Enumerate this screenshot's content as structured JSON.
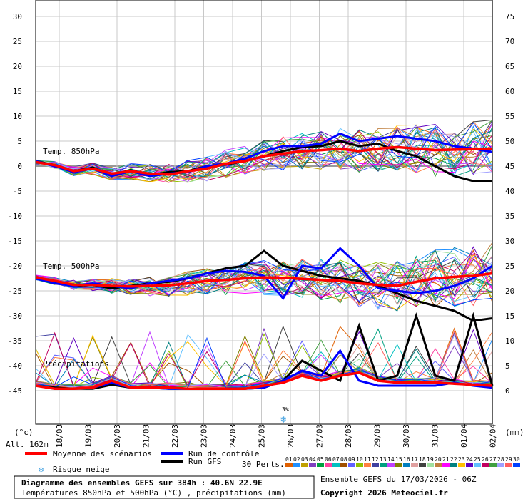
{
  "chart_data": {
    "type": "line",
    "left_axis": {
      "unit": "(°c)",
      "ticks": [
        30,
        25,
        20,
        15,
        10,
        5,
        0,
        -5,
        -10,
        -15,
        -20,
        -25,
        -30,
        -35,
        -40,
        -45
      ],
      "range": [
        -45,
        30
      ]
    },
    "right_axis": {
      "unit": "(mm)",
      "ticks": [
        75,
        70,
        65,
        60,
        55,
        50,
        45,
        40,
        35,
        30,
        25,
        20,
        15,
        10,
        5,
        0
      ],
      "range": [
        0,
        75
      ]
    },
    "x_labels": [
      "18/03",
      "19/03",
      "20/03",
      "21/03",
      "22/03",
      "23/03",
      "24/03",
      "25/03",
      "26/03",
      "27/03",
      "28/03",
      "29/03",
      "30/03",
      "31/03",
      "01/04",
      "02/04"
    ],
    "panels": [
      "Temp. 850hPa",
      "Temp. 500hPa",
      "Précipitations"
    ],
    "altitude": "Alt. 162m",
    "series": [
      {
        "name": "Moyenne des scénarios",
        "color": "#ff0000",
        "t850": [
          0.8,
          0.2,
          -1,
          -0.5,
          -1.5,
          -1,
          -1.5,
          -1.7,
          -1,
          -0.5,
          0.5,
          1,
          2,
          2.5,
          3,
          3.2,
          3.5,
          3,
          3.5,
          3.8,
          3.5,
          3.2,
          3.3,
          3.4,
          3.5
        ],
        "t500": [
          -22.3,
          -23,
          -23.8,
          -23.8,
          -24,
          -24.1,
          -24,
          -23.9,
          -23.5,
          -23,
          -22.8,
          -22.5,
          -22.3,
          -22.4,
          -22.6,
          -22.8,
          -23,
          -23.5,
          -23.8,
          -24,
          -23.2,
          -22.5,
          -22.2,
          -22,
          -21.5
        ],
        "precip": [
          0.5,
          0.2,
          0.2,
          0.3,
          1,
          0.3,
          0.3,
          0.3,
          0.2,
          0.2,
          0.2,
          0.2,
          0.5,
          0.8,
          1.5,
          1,
          1.5,
          1.8,
          1,
          0.8,
          0.8,
          0.8,
          0.7,
          0.6,
          0.5
        ]
      },
      {
        "name": "Run de contrôle",
        "color": "#0000ff",
        "t850": [
          1,
          0,
          -1.2,
          -0.5,
          -2,
          -1,
          -2,
          -1.5,
          -1.2,
          0,
          0.5,
          1.5,
          3,
          4,
          4,
          4.5,
          6.5,
          5,
          5.5,
          6,
          5.5,
          5,
          4,
          3.5,
          2.8
        ],
        "t500": [
          -22.5,
          -23.5,
          -24,
          -23.5,
          -24,
          -24.5,
          -23.5,
          -23,
          -22.5,
          -21.5,
          -21,
          -21.2,
          -22,
          -26.5,
          -20,
          -20.5,
          -16.5,
          -20,
          -24.5,
          -25,
          -25.5,
          -25,
          -24,
          -22.5,
          -20
        ],
        "precip": [
          0.5,
          0.2,
          0.2,
          0.3,
          0.8,
          0.3,
          0.3,
          0.2,
          0.2,
          0.2,
          0.2,
          0.2,
          0.3,
          1,
          2,
          1.5,
          4,
          1,
          0.5,
          0.5,
          0.5,
          0.5,
          0.8,
          0.5,
          0.3
        ]
      },
      {
        "name": "Run GFS",
        "color": "#000000",
        "t850": [
          1,
          0.2,
          -1,
          -0.3,
          -1.8,
          -0.8,
          -1.8,
          -1.2,
          -1,
          0,
          0.3,
          1,
          2,
          3,
          3.8,
          4,
          5,
          4,
          4.5,
          3,
          2,
          0,
          -2,
          -3,
          -3
        ],
        "t500": [
          -22.5,
          -23.2,
          -24,
          -23.8,
          -24.5,
          -24,
          -23.5,
          -23.2,
          -22.5,
          -21.5,
          -20.5,
          -20,
          -17,
          -20,
          -21,
          -22,
          -22.5,
          -23,
          -24,
          -25.5,
          -27,
          -28,
          -29,
          -31,
          -30.5
        ],
        "precip": [
          0.5,
          0.3,
          0.2,
          0.2,
          0.6,
          0.3,
          0.3,
          0.2,
          0.2,
          0.2,
          0.2,
          0.2,
          0.3,
          1,
          3,
          2,
          1,
          6.5,
          1,
          1.5,
          7.5,
          1.5,
          1,
          7.5,
          0.5
        ]
      }
    ],
    "legend": {
      "items": [
        "Moyenne des scénarios",
        "Run de contrôle",
        "Run GFS",
        "Risque neige"
      ],
      "perts_label": "30 Perts.",
      "perts": [
        "01",
        "02",
        "03",
        "04",
        "05",
        "06",
        "07",
        "08",
        "09",
        "10",
        "11",
        "12",
        "13",
        "14",
        "15",
        "16",
        "17",
        "18",
        "19",
        "20",
        "21",
        "22",
        "23",
        "24",
        "25",
        "26",
        "27",
        "28",
        "29",
        "30"
      ]
    },
    "title": "Diagramme des ensembles GEFS sur 384h : 40.6N 22.9E",
    "subtitle": "Températures 850hPa et 500hPa (°C) , précipitations (mm)",
    "run_info": "Ensemble GEFS du 17/03/2026 - 06Z",
    "copyright": "Copyright 2026 Meteociel.fr",
    "snow_marker": "3%"
  },
  "colors": {
    "mean": "#ff0000",
    "control": "#0000ff",
    "gfs": "#000000",
    "grid": "#c0c0c0",
    "perts": [
      "#e06000",
      "#2090ff",
      "#c0a000",
      "#8040c0",
      "#00a040",
      "#ff40a0",
      "#00c0c0",
      "#a05000",
      "#6060ff",
      "#90c000",
      "#ff8040",
      "#4040a0",
      "#00a080",
      "#c040ff",
      "#808000",
      "#0080c0",
      "#e0a0a0",
      "#404040",
      "#a0e0a0",
      "#c08040",
      "#ff00ff",
      "#008080",
      "#ffc000",
      "#6000c0",
      "#60c0ff",
      "#c00060",
      "#40a040",
      "#a0a0ff",
      "#ff6060",
      "#0040ff"
    ]
  }
}
